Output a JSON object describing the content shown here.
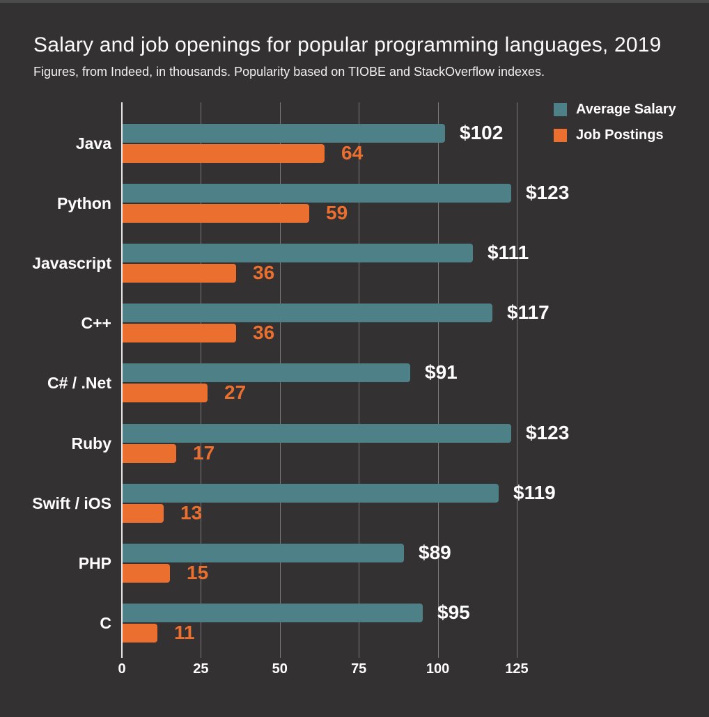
{
  "title": "Salary and job openings for popular programming languages, 2019",
  "subtitle": "Figures, from Indeed, in thousands. Popularity based on TIOBE and StackOverflow indexes.",
  "colors": {
    "background": "#333131",
    "salary": "#4e8187",
    "postings": "#eb6f2e",
    "gridline": "#7a7878",
    "axis": "#e9e9e9",
    "text": "#ffffff"
  },
  "legend": [
    {
      "label": "Average Salary",
      "color": "#4e8187"
    },
    {
      "label": "Job Postings",
      "color": "#eb6f2e"
    }
  ],
  "chart_data": {
    "type": "bar",
    "orientation": "horizontal",
    "title": "Salary and job openings for popular programming languages, 2019",
    "subtitle": "Figures, from Indeed, in thousands. Popularity based on TIOBE and StackOverflow indexes.",
    "categories": [
      "Java",
      "Python",
      "Javascript",
      "C++",
      "C# / .Net",
      "Ruby",
      "Swift / iOS",
      "PHP",
      "C"
    ],
    "series": [
      {
        "name": "Average Salary",
        "color": "#4e8187",
        "values": [
          102,
          123,
          111,
          117,
          91,
          123,
          119,
          89,
          95
        ],
        "labels": [
          "$102",
          "$123",
          "$111",
          "$117",
          "$91",
          "$123",
          "$119",
          "$89",
          "$95"
        ],
        "label_color": "#ffffff"
      },
      {
        "name": "Job Postings",
        "color": "#eb6f2e",
        "values": [
          64,
          59,
          36,
          36,
          27,
          17,
          13,
          15,
          11
        ],
        "labels": [
          "64",
          "59",
          "36",
          "36",
          "27",
          "17",
          "13",
          "15",
          "11"
        ],
        "label_color": "#eb6f2e"
      }
    ],
    "xticks": [
      0,
      25,
      50,
      75,
      100,
      125
    ],
    "xlim": [
      0,
      125
    ],
    "grid": true,
    "legend_position": "top-right"
  }
}
